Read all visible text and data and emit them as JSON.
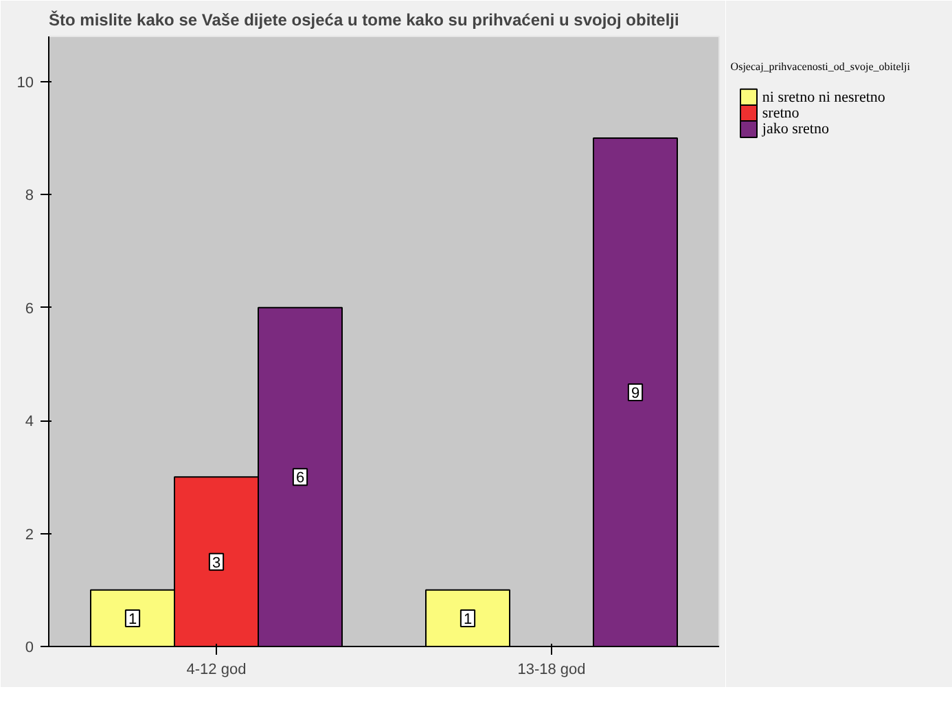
{
  "chart_data": {
    "type": "bar",
    "title": "Što mislite kako se Vaše dijete osjeća u tome kako su prihvaćeni u svojoj obitelji",
    "legend_title": "Osjecaj_prihvacenosti_od_svoje_obitelji",
    "categories": [
      "4-12 god",
      "13-18 god"
    ],
    "series": [
      {
        "name": "ni sretno ni nesretno",
        "color": "#fbfb7c",
        "values": [
          1,
          1
        ]
      },
      {
        "name": "sretno",
        "color": "#ee3030",
        "values": [
          3,
          null
        ]
      },
      {
        "name": "jako sretno",
        "color": "#7b2a7f",
        "values": [
          6,
          9
        ]
      }
    ],
    "ylim": [
      0,
      10.8
    ],
    "yticks": [
      0,
      2,
      4,
      6,
      8,
      10
    ],
    "data_labels": true,
    "legend": "top right",
    "grid": false
  }
}
